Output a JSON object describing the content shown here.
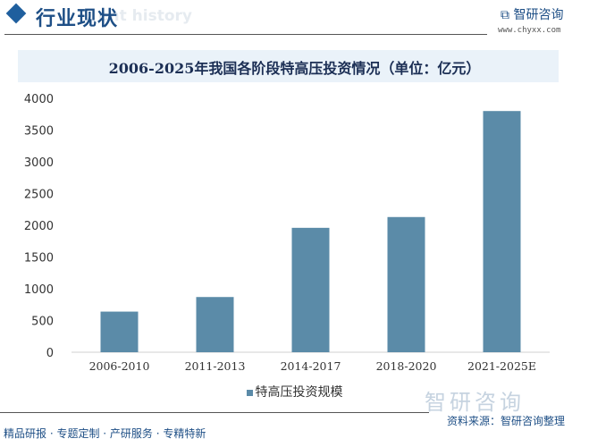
{
  "header": {
    "title": "行业现状",
    "ghost_text": "ent history",
    "logo_name": "智研咨询",
    "logo_url": "www.chyxx.com"
  },
  "footer": {
    "tagline": "精品研报 · 专题定制 · 产研服务 · 专精特新",
    "source": "资料来源：智研咨询整理",
    "logo_name": "智研咨询"
  },
  "colors": {
    "bar": "#5b8ba8",
    "header_accent": "#1e4f86"
  },
  "chart_data": {
    "type": "bar",
    "title": "2006-2025年我国各阶段特高压投资情况（单位：亿元）",
    "categories": [
      "2006-2010",
      "2011-2013",
      "2014-2017",
      "2018-2020",
      "2021-2025E"
    ],
    "series": [
      {
        "name": "特高压投资规模",
        "values": [
          640,
          870,
          1960,
          2130,
          3800
        ]
      }
    ],
    "ylim": [
      0,
      4000
    ],
    "yticks": [
      0,
      500,
      1000,
      1500,
      2000,
      2500,
      3000,
      3500,
      4000
    ],
    "grid": false,
    "legend": "bottom"
  }
}
